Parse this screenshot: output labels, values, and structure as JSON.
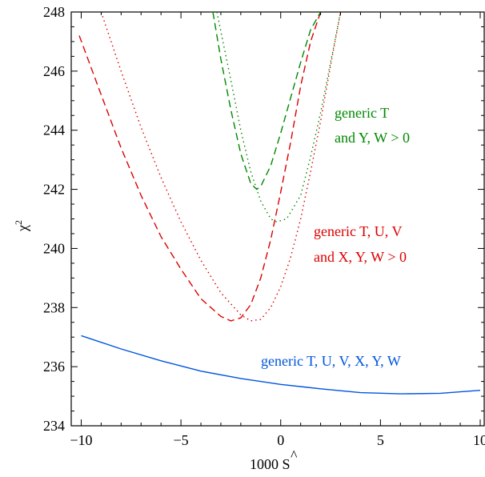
{
  "chart_data": {
    "type": "line",
    "xlabel": "1000 Ŝ",
    "xlabel_main": "1000 S",
    "xlabel_hat": "^",
    "ylabel": "χ²",
    "ylabel_main": "χ",
    "ylabel_sup": "2",
    "xlim": [
      -10.5,
      10.2
    ],
    "ylim": [
      234,
      248
    ],
    "xticks": [
      -10,
      -5,
      0,
      5,
      10
    ],
    "xtick_labels": [
      "−10",
      "−5",
      "0",
      "5",
      "10"
    ],
    "yticks": [
      234,
      236,
      238,
      240,
      242,
      244,
      246,
      248
    ],
    "ytick_labels": [
      "234",
      "236",
      "238",
      "240",
      "242",
      "244",
      "246",
      "248"
    ],
    "grid": false,
    "series": [
      {
        "color": "#0055dd",
        "style": "solid",
        "x": [
          -10,
          -8,
          -6,
          -4,
          -2,
          0,
          2,
          4,
          6,
          8,
          10
        ],
        "y": [
          237.05,
          236.6,
          236.2,
          235.85,
          235.6,
          235.4,
          235.25,
          235.12,
          235.08,
          235.1,
          235.2
        ]
      },
      {
        "color": "#dd0000",
        "style": "dashed",
        "x": [
          -10.1,
          -9,
          -8,
          -7,
          -6,
          -5,
          -4,
          -3,
          -2.5,
          -2,
          -1.5,
          -1,
          -0.5,
          0,
          0.5,
          1,
          1.5,
          2
        ],
        "y": [
          247.2,
          245.2,
          243.4,
          241.8,
          240.4,
          239.3,
          238.3,
          237.7,
          237.55,
          237.65,
          238.1,
          239.0,
          240.3,
          241.9,
          243.6,
          245.5,
          247.0,
          248.0
        ]
      },
      {
        "color": "#dd0000",
        "style": "dotted",
        "x": [
          -9,
          -8,
          -7,
          -6,
          -5,
          -4,
          -3,
          -2,
          -1.5,
          -1,
          -0.5,
          0,
          0.5,
          1,
          1.5,
          2,
          2.5,
          3
        ],
        "y": [
          248.0,
          246.0,
          244.1,
          242.4,
          240.9,
          239.6,
          238.5,
          237.75,
          237.55,
          237.6,
          238.0,
          238.7,
          239.7,
          241.0,
          242.6,
          244.3,
          246.2,
          248.0
        ]
      },
      {
        "color": "#008800",
        "style": "dashed",
        "x": [
          -3.4,
          -3,
          -2.5,
          -2,
          -1.5,
          -1.2,
          -1,
          -0.5,
          0,
          0.5,
          1,
          1.5,
          2
        ],
        "y": [
          248.0,
          246.4,
          244.7,
          243.2,
          242.2,
          242.0,
          242.1,
          242.8,
          243.9,
          245.1,
          246.3,
          247.4,
          248.0
        ]
      },
      {
        "color": "#008800",
        "style": "dotted",
        "x": [
          -3.2,
          -2.5,
          -2,
          -1.5,
          -1,
          -0.5,
          -0.2,
          0.3,
          1,
          1.5,
          2,
          2.5,
          3
        ],
        "y": [
          248.0,
          245.7,
          244.0,
          242.6,
          241.6,
          241.0,
          240.9,
          241.0,
          241.8,
          243.1,
          244.6,
          246.3,
          248.0
        ]
      }
    ],
    "annotations": [
      {
        "color": "#008800",
        "lines": [
          "generic T",
          "and Y, W > 0"
        ]
      },
      {
        "color": "#dd0000",
        "lines": [
          "generic T, U, V",
          "and X, Y, W > 0"
        ]
      },
      {
        "color": "#0055dd",
        "lines": [
          "generic T, U, V, X, Y, W"
        ]
      }
    ]
  }
}
